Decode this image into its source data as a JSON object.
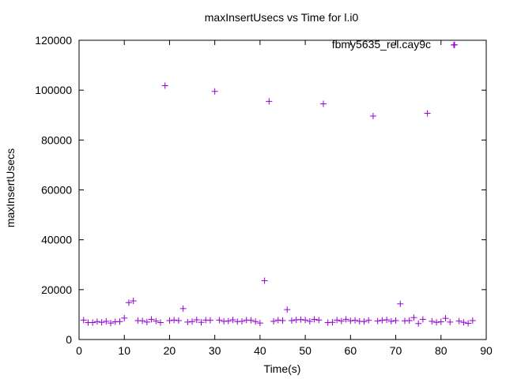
{
  "chart_data": {
    "type": "scatter",
    "title": "maxInsertUsecs vs Time for l.i0",
    "xlabel": "Time(s)",
    "ylabel": "maxInsertUsecs",
    "xlim": [
      0,
      90
    ],
    "ylim": [
      0,
      120000
    ],
    "x_ticks": [
      0,
      10,
      20,
      30,
      40,
      50,
      60,
      70,
      80,
      90
    ],
    "y_ticks": [
      0,
      20000,
      40000,
      60000,
      80000,
      100000,
      120000
    ],
    "x_tick_labels": [
      "0",
      "10",
      "20",
      "30",
      "40",
      "50",
      "60",
      "70",
      "80",
      "90"
    ],
    "y_tick_labels": [
      "0",
      "20000",
      "40000",
      "60000",
      "80000",
      "100000",
      "120000"
    ],
    "grid": false,
    "legend_position": "top-right",
    "marker": "plus",
    "series": [
      {
        "name": "fbmy5635_rel.cay9c",
        "color": "#9400d3",
        "points": [
          [
            1,
            7800
          ],
          [
            2,
            6800
          ],
          [
            3,
            6800
          ],
          [
            4,
            7200
          ],
          [
            5,
            6900
          ],
          [
            6,
            7300
          ],
          [
            7,
            6600
          ],
          [
            8,
            7100
          ],
          [
            9,
            7200
          ],
          [
            10,
            8600
          ],
          [
            11,
            14800
          ],
          [
            12,
            15500
          ],
          [
            13,
            7600
          ],
          [
            14,
            7500
          ],
          [
            15,
            7000
          ],
          [
            16,
            8100
          ],
          [
            17,
            7400
          ],
          [
            18,
            6800
          ],
          [
            19,
            101800
          ],
          [
            20,
            7600
          ],
          [
            21,
            7800
          ],
          [
            22,
            7600
          ],
          [
            23,
            12400
          ],
          [
            24,
            7000
          ],
          [
            25,
            7200
          ],
          [
            26,
            7900
          ],
          [
            27,
            6900
          ],
          [
            28,
            7800
          ],
          [
            29,
            7700
          ],
          [
            30,
            99500
          ],
          [
            31,
            7800
          ],
          [
            32,
            7300
          ],
          [
            33,
            7400
          ],
          [
            34,
            7900
          ],
          [
            35,
            7200
          ],
          [
            36,
            7300
          ],
          [
            37,
            7800
          ],
          [
            38,
            7700
          ],
          [
            39,
            7200
          ],
          [
            40,
            6600
          ],
          [
            41,
            23600
          ],
          [
            42,
            95500
          ],
          [
            43,
            7300
          ],
          [
            44,
            7800
          ],
          [
            45,
            7600
          ],
          [
            46,
            12000
          ],
          [
            47,
            7600
          ],
          [
            48,
            7900
          ],
          [
            49,
            8000
          ],
          [
            50,
            7800
          ],
          [
            51,
            7300
          ],
          [
            52,
            8100
          ],
          [
            53,
            7800
          ],
          [
            54,
            94500
          ],
          [
            55,
            6800
          ],
          [
            56,
            6900
          ],
          [
            57,
            7800
          ],
          [
            58,
            7400
          ],
          [
            59,
            8100
          ],
          [
            60,
            7500
          ],
          [
            61,
            7700
          ],
          [
            62,
            7300
          ],
          [
            63,
            7200
          ],
          [
            64,
            7700
          ],
          [
            65,
            89600
          ],
          [
            66,
            7400
          ],
          [
            67,
            7700
          ],
          [
            68,
            7900
          ],
          [
            69,
            7300
          ],
          [
            70,
            7600
          ],
          [
            71,
            14300
          ],
          [
            72,
            7500
          ],
          [
            73,
            7600
          ],
          [
            74,
            8800
          ],
          [
            75,
            6400
          ],
          [
            76,
            8100
          ],
          [
            77,
            90700
          ],
          [
            78,
            7300
          ],
          [
            79,
            6900
          ],
          [
            80,
            7100
          ],
          [
            81,
            8500
          ],
          [
            82,
            7000
          ],
          [
            83,
            118200
          ],
          [
            84,
            7400
          ],
          [
            85,
            6900
          ],
          [
            86,
            6500
          ],
          [
            87,
            7600
          ]
        ]
      }
    ]
  }
}
